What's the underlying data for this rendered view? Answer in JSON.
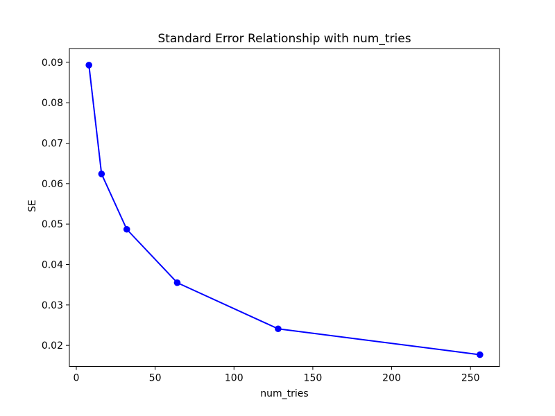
{
  "figure": {
    "background": "#ffffff"
  },
  "chart_data": {
    "type": "line",
    "title": "Standard Error Relationship with num_tries",
    "xlabel": "num_tries",
    "ylabel": "SE",
    "x": [
      8,
      16,
      32,
      64,
      128,
      256
    ],
    "y": [
      0.0893,
      0.0624,
      0.0487,
      0.0355,
      0.0241,
      0.0177
    ],
    "xticks": [
      0,
      50,
      100,
      150,
      200,
      250
    ],
    "yticks": [
      0.02,
      0.03,
      0.04,
      0.05,
      0.06,
      0.07,
      0.08,
      0.09
    ],
    "xlim": [
      -4.4,
      268.4
    ],
    "ylim": [
      0.0148,
      0.0934
    ],
    "grid": false,
    "legend": "none",
    "line_color": "#0000ff",
    "marker": "circle",
    "axis_color": "#000000",
    "text_color": "#000000"
  }
}
